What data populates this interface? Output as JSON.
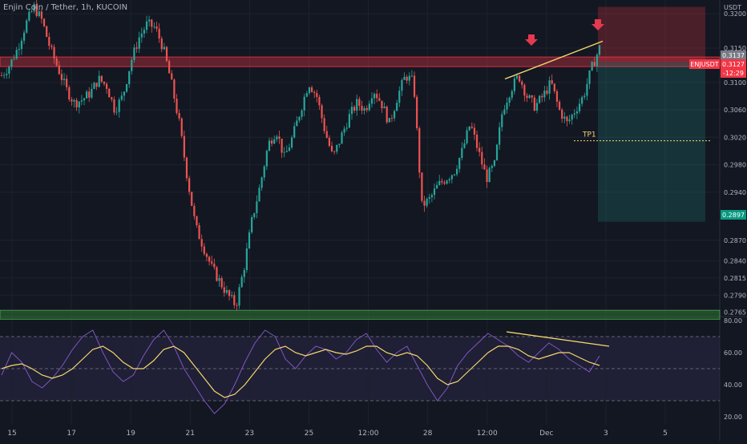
{
  "header": {
    "title": "Enjin Coin / Tether, 1h, KUCOIN",
    "currency": "USDT"
  },
  "price_badges": [
    {
      "text": "ENJUSDT",
      "color": "#f23645"
    },
    {
      "text": "0.3137",
      "color": "#787b86"
    },
    {
      "text": "0.3127",
      "color": "#f23645"
    },
    {
      "text": "-12:29",
      "color": "#f23645"
    },
    {
      "text": "0.2897",
      "color": "#089981"
    }
  ],
  "annotations": {
    "tp_label": "TP1"
  },
  "colors": {
    "up": "#26a69a",
    "down": "#ef5350",
    "resistance": "#f23645",
    "support": "#2e7d32",
    "trendline": "#f5d76e",
    "rsi_line": "#7e57c2",
    "rsi_ma": "#f5d76e"
  },
  "chart_data": [
    {
      "type": "candlestick",
      "title": "Enjin Coin / Tether, 1h, KUCOIN",
      "x_tick_labels": [
        "15",
        "17",
        "19",
        "21",
        "23",
        "25",
        "12:00",
        "28",
        "12:00",
        "Dec",
        "3",
        "5"
      ],
      "y_tick_labels": [
        "0.3200",
        "0.3150",
        "0.3100",
        "0.3060",
        "0.3020",
        "0.2980",
        "0.2940",
        "0.2870",
        "0.2840",
        "0.2815",
        "0.2790",
        "0.2765"
      ],
      "ylim": [
        0.276,
        0.322
      ],
      "price_path": [
        0.311,
        0.3125,
        0.315,
        0.3185,
        0.321,
        0.319,
        0.315,
        0.312,
        0.309,
        0.307,
        0.3075,
        0.3085,
        0.3105,
        0.3095,
        0.306,
        0.308,
        0.313,
        0.3165,
        0.3185,
        0.318,
        0.315,
        0.31,
        0.304,
        0.296,
        0.289,
        0.286,
        0.283,
        0.281,
        0.279,
        0.2775,
        0.283,
        0.29,
        0.295,
        0.301,
        0.303,
        0.299,
        0.302,
        0.306,
        0.31,
        0.308,
        0.303,
        0.299,
        0.302,
        0.305,
        0.307,
        0.306,
        0.309,
        0.307,
        0.304,
        0.308,
        0.311,
        0.31,
        0.292,
        0.293,
        0.295,
        0.296,
        0.297,
        0.3,
        0.304,
        0.3,
        0.296,
        0.298,
        0.306,
        0.309,
        0.311,
        0.308,
        0.3065,
        0.308,
        0.31,
        0.306,
        0.304,
        0.306,
        0.308,
        0.312,
        0.315
      ],
      "resistance_zone": [
        0.3123,
        0.3137
      ],
      "support_zone": [
        0.2755,
        0.2768
      ],
      "trendline": [
        [
          0.3105,
          0.316
        ]
      ],
      "position": {
        "entry": 0.313,
        "stop": 0.321,
        "target": 0.2897,
        "tp1": 0.3015
      }
    },
    {
      "type": "line",
      "title": "RSI",
      "y_tick_labels": [
        "80.00",
        "60.00",
        "40.00",
        "20.00"
      ],
      "ylim": [
        15,
        82
      ],
      "levels": [
        70,
        50,
        30
      ],
      "series": [
        {
          "values": [
            46,
            60,
            54,
            42,
            38,
            44,
            52,
            62,
            70,
            74,
            60,
            48,
            42,
            46,
            58,
            68,
            74,
            64,
            50,
            40,
            30,
            22,
            28,
            40,
            54,
            66,
            74,
            70,
            56,
            50,
            58,
            64,
            62,
            56,
            60,
            68,
            72,
            62,
            54,
            60,
            64,
            52,
            40,
            30,
            38,
            52,
            60,
            66,
            72,
            68,
            64,
            58,
            54,
            60,
            66,
            62,
            56,
            52,
            48,
            58
          ]
        },
        {
          "values": [
            50,
            52,
            53,
            50,
            46,
            44,
            46,
            50,
            56,
            62,
            64,
            60,
            54,
            50,
            50,
            55,
            62,
            64,
            60,
            52,
            44,
            36,
            32,
            34,
            40,
            48,
            56,
            62,
            64,
            60,
            58,
            60,
            62,
            60,
            59,
            61,
            64,
            64,
            60,
            58,
            60,
            58,
            52,
            44,
            40,
            42,
            48,
            54,
            60,
            64,
            64,
            62,
            58,
            56,
            58,
            60,
            60,
            57,
            54,
            52
          ]
        }
      ]
    }
  ]
}
